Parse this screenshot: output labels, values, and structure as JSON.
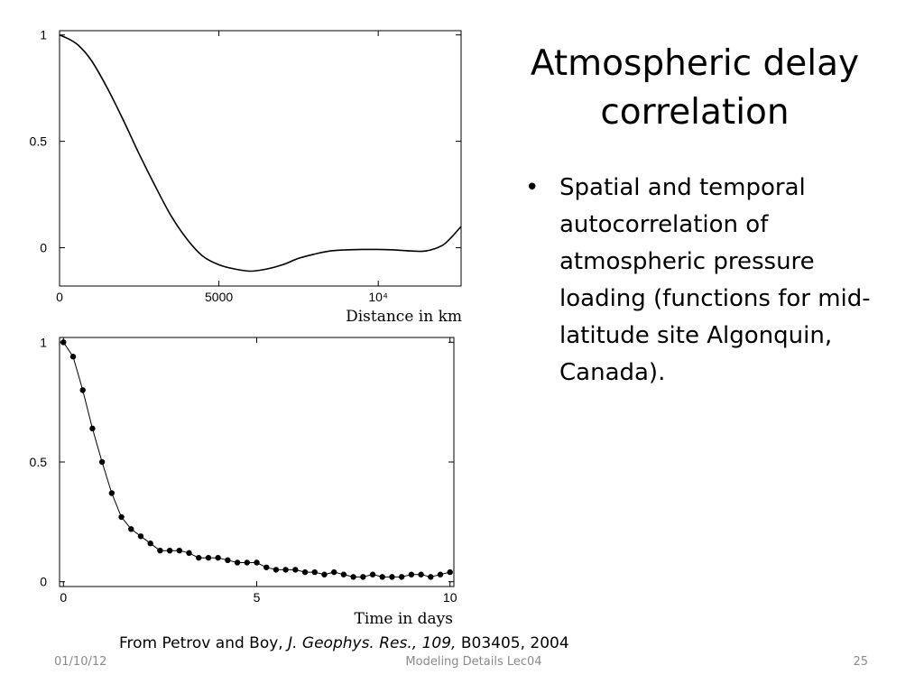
{
  "slide": {
    "title": "Atmospheric delay correlation",
    "bullets": [
      "Spatial and temporal autocorrelation of atmospheric pressure loading (functions for mid-latitude site Algonquin, Canada)."
    ],
    "citation": {
      "prefix": "From Petrov and Boy, ",
      "journal": "J. Geophys. Res., 109,",
      "suffix": " B03405, 2004"
    },
    "footer": {
      "date": "01/10/12",
      "center": "Modeling Details Lec04",
      "page": "25"
    }
  },
  "chart_data": [
    {
      "type": "line",
      "title": "",
      "xlabel": "Distance in km",
      "ylabel": "",
      "xlim": [
        0,
        12600
      ],
      "ylim": [
        -0.18,
        1.02
      ],
      "x_ticks": [
        {
          "value": 0,
          "label": "0"
        },
        {
          "value": 5000,
          "label": "5000"
        },
        {
          "value": 10000,
          "label": "10⁴"
        }
      ],
      "y_ticks": [
        {
          "value": 0,
          "label": "0"
        },
        {
          "value": 0.5,
          "label": "0.5"
        },
        {
          "value": 1,
          "label": "1"
        }
      ],
      "grid": false,
      "series": [
        {
          "x": [
            0,
            300,
            600,
            1000,
            1500,
            2000,
            2500,
            3000,
            3500,
            4000,
            4500,
            5000,
            5500,
            6000,
            6500,
            7000,
            7500,
            8000,
            8500,
            9000,
            9500,
            10000,
            10500,
            11000,
            11500,
            12000,
            12300,
            12600
          ],
          "y": [
            1.0,
            0.98,
            0.95,
            0.88,
            0.75,
            0.6,
            0.44,
            0.29,
            0.15,
            0.04,
            -0.04,
            -0.08,
            -0.1,
            -0.11,
            -0.1,
            -0.08,
            -0.05,
            -0.03,
            -0.015,
            -0.01,
            -0.008,
            -0.008,
            -0.01,
            -0.015,
            -0.015,
            0.01,
            0.05,
            0.1
          ]
        }
      ]
    },
    {
      "type": "line",
      "title": "",
      "xlabel": "Time in days",
      "ylabel": "",
      "xlim": [
        -0.1,
        10.1
      ],
      "ylim": [
        -0.02,
        1.02
      ],
      "x_ticks": [
        {
          "value": 0,
          "label": "0"
        },
        {
          "value": 5,
          "label": "5"
        },
        {
          "value": 10,
          "label": "10"
        }
      ],
      "y_ticks": [
        {
          "value": 0,
          "label": "0"
        },
        {
          "value": 0.5,
          "label": "0.5"
        },
        {
          "value": 1,
          "label": "1"
        }
      ],
      "grid": false,
      "markers": true,
      "series": [
        {
          "x": [
            0,
            0.25,
            0.5,
            0.75,
            1,
            1.25,
            1.5,
            1.75,
            2,
            2.25,
            2.5,
            2.75,
            3,
            3.25,
            3.5,
            3.75,
            4,
            4.25,
            4.5,
            4.75,
            5,
            5.25,
            5.5,
            5.75,
            6,
            6.25,
            6.5,
            6.75,
            7,
            7.25,
            7.5,
            7.75,
            8,
            8.25,
            8.5,
            8.75,
            9,
            9.25,
            9.5,
            9.75,
            10
          ],
          "y": [
            1.0,
            0.94,
            0.8,
            0.64,
            0.5,
            0.37,
            0.27,
            0.22,
            0.19,
            0.16,
            0.13,
            0.13,
            0.13,
            0.12,
            0.1,
            0.1,
            0.1,
            0.09,
            0.08,
            0.08,
            0.08,
            0.06,
            0.05,
            0.05,
            0.05,
            0.04,
            0.04,
            0.03,
            0.04,
            0.03,
            0.02,
            0.02,
            0.03,
            0.02,
            0.02,
            0.02,
            0.03,
            0.03,
            0.02,
            0.03,
            0.04
          ]
        }
      ]
    }
  ]
}
